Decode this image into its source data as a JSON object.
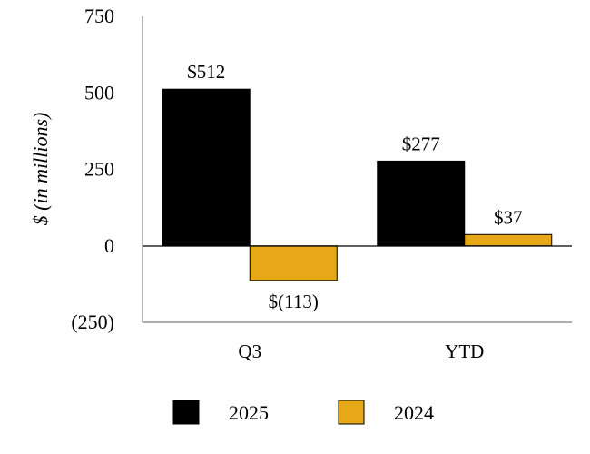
{
  "chart_data": {
    "type": "bar",
    "title": "",
    "xlabel": "",
    "ylabel": "$ (in millions)",
    "categories": [
      "Q3",
      "YTD"
    ],
    "series": [
      {
        "name": "2025",
        "values": [
          512,
          277
        ],
        "labels": [
          "$512",
          "$277"
        ]
      },
      {
        "name": "2024",
        "values": [
          -113,
          37
        ],
        "labels": [
          "$(113)",
          "$37"
        ]
      }
    ],
    "ylim": [
      -250,
      750
    ],
    "yticks": [
      750,
      500,
      250,
      0,
      -250
    ],
    "ytick_labels": [
      "750",
      "500",
      "250",
      "0",
      "(250)"
    ],
    "grid": false,
    "legend_position": "bottom-center",
    "colors": {
      "2025": "#000000",
      "2024": "#E6A817"
    }
  }
}
